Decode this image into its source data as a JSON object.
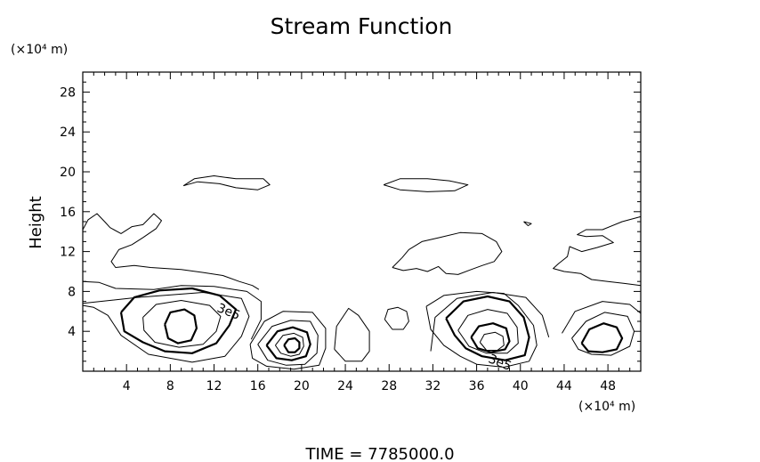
{
  "chart_data": {
    "type": "contour",
    "title": "Stream Function",
    "ylabel": "Height",
    "xlabel": "",
    "x_unit": "(×10⁴ m)",
    "y_unit": "(×10⁴ m)",
    "xlim": [
      0,
      51
    ],
    "ylim": [
      0,
      30
    ],
    "x_ticks": [
      4,
      8,
      12,
      16,
      20,
      24,
      28,
      32,
      36,
      40,
      44,
      48
    ],
    "y_ticks": [
      4,
      8,
      12,
      16,
      20,
      24,
      28
    ],
    "contour_labels": [
      {
        "text": "3e5",
        "x": 13.2,
        "y": 5.6
      },
      {
        "text": "3e5",
        "x": 38.0,
        "y": 0.5
      }
    ],
    "footer": "TIME  =  7785000.0",
    "contours": [
      {
        "bold": false,
        "points": [
          [
            0,
            6.8
          ],
          [
            5,
            7.4
          ],
          [
            11,
            7.9
          ],
          [
            14.5,
            7.3
          ],
          [
            15.2,
            5.5
          ],
          [
            14.5,
            3.5
          ],
          [
            13,
            1.5
          ],
          [
            10,
            0.9
          ],
          [
            6,
            1.7
          ],
          [
            3.5,
            3.6
          ],
          [
            2.3,
            5.6
          ],
          [
            1,
            6.4
          ],
          [
            0,
            6.6
          ]
        ]
      },
      {
        "bold": true,
        "points": [
          [
            3.5,
            5.9
          ],
          [
            4.7,
            7.4
          ],
          [
            7,
            8.1
          ],
          [
            10,
            8.3
          ],
          [
            12.5,
            7.6
          ],
          [
            14,
            6.2
          ],
          [
            13.4,
            4.6
          ],
          [
            12.2,
            2.8
          ],
          [
            10,
            1.8
          ],
          [
            7.5,
            2.0
          ],
          [
            5.5,
            2.9
          ],
          [
            3.8,
            4.0
          ],
          [
            3.5,
            5.9
          ]
        ]
      },
      {
        "bold": false,
        "points": [
          [
            5.5,
            5.4
          ],
          [
            6.7,
            6.7
          ],
          [
            9,
            7.1
          ],
          [
            11.6,
            6.6
          ],
          [
            12.6,
            5.5
          ],
          [
            12.2,
            4.0
          ],
          [
            11,
            2.7
          ],
          [
            8.8,
            2.4
          ],
          [
            6.6,
            2.9
          ],
          [
            5.6,
            4.1
          ],
          [
            5.5,
            5.4
          ]
        ]
      },
      {
        "bold": true,
        "points": [
          [
            7.5,
            4.7
          ],
          [
            8,
            5.9
          ],
          [
            9.3,
            6.2
          ],
          [
            10.2,
            5.6
          ],
          [
            10.4,
            4.3
          ],
          [
            9.9,
            3.1
          ],
          [
            8.7,
            2.8
          ],
          [
            7.8,
            3.3
          ],
          [
            7.5,
            4.7
          ]
        ]
      },
      {
        "bold": false,
        "points": [
          [
            0,
            9.0
          ],
          [
            1.5,
            8.9
          ],
          [
            3,
            8.3
          ],
          [
            6.5,
            8.2
          ],
          [
            9,
            8.6
          ],
          [
            12,
            8.5
          ],
          [
            15,
            8.0
          ],
          [
            16.3,
            7.0
          ],
          [
            16.3,
            5.2
          ],
          [
            15.4,
            3.2
          ]
        ]
      },
      {
        "bold": false,
        "points": [
          [
            15.3,
            2.7
          ],
          [
            16.6,
            5.0
          ],
          [
            18.3,
            6.0
          ],
          [
            21,
            5.9
          ],
          [
            22.2,
            4.3
          ],
          [
            22.2,
            2.3
          ],
          [
            21.6,
            0.6
          ],
          [
            19.3,
            0.2
          ],
          [
            16.8,
            0.5
          ],
          [
            15.5,
            1.3
          ],
          [
            15.3,
            2.7
          ]
        ]
      },
      {
        "bold": false,
        "points": [
          [
            16,
            2.7
          ],
          [
            17.3,
            4.5
          ],
          [
            19,
            5.1
          ],
          [
            20.8,
            5.0
          ],
          [
            21.5,
            3.6
          ],
          [
            21.4,
            1.8
          ],
          [
            20.3,
            0.7
          ],
          [
            18.6,
            0.6
          ],
          [
            16.9,
            1.1
          ],
          [
            16,
            2.7
          ]
        ]
      },
      {
        "bold": true,
        "points": [
          [
            16.8,
            2.6
          ],
          [
            17.8,
            4.0
          ],
          [
            19.2,
            4.4
          ],
          [
            20.5,
            3.9
          ],
          [
            20.8,
            2.7
          ],
          [
            20.4,
            1.5
          ],
          [
            19.1,
            1.1
          ],
          [
            17.7,
            1.3
          ],
          [
            16.8,
            2.6
          ]
        ]
      },
      {
        "bold": false,
        "points": [
          [
            17.6,
            2.6
          ],
          [
            18.3,
            3.6
          ],
          [
            19.3,
            3.8
          ],
          [
            20.1,
            3.4
          ],
          [
            20.2,
            2.5
          ],
          [
            19.8,
            1.7
          ],
          [
            19,
            1.5
          ],
          [
            18.1,
            1.8
          ],
          [
            17.6,
            2.6
          ]
        ]
      },
      {
        "bold": true,
        "points": [
          [
            18.4,
            2.6
          ],
          [
            18.8,
            3.2
          ],
          [
            19.4,
            3.3
          ],
          [
            19.8,
            2.9
          ],
          [
            19.8,
            2.3
          ],
          [
            19.4,
            1.9
          ],
          [
            18.8,
            1.9
          ],
          [
            18.4,
            2.6
          ]
        ]
      },
      {
        "bold": false,
        "points": [
          [
            23,
            2.2
          ],
          [
            23.2,
            4.5
          ],
          [
            24.3,
            6.3
          ],
          [
            25.2,
            5.6
          ],
          [
            26.2,
            4.0
          ],
          [
            26.2,
            2.0
          ],
          [
            25.5,
            1.0
          ],
          [
            24,
            1.0
          ],
          [
            23,
            2.2
          ]
        ]
      },
      {
        "bold": false,
        "points": [
          [
            27.6,
            5.2
          ],
          [
            27.9,
            6.2
          ],
          [
            28.8,
            6.4
          ],
          [
            29.6,
            6.0
          ],
          [
            29.8,
            5.0
          ],
          [
            29.3,
            4.2
          ],
          [
            28.3,
            4.2
          ],
          [
            27.6,
            5.2
          ]
        ]
      },
      {
        "bold": false,
        "points": [
          [
            31.4,
            6.5
          ],
          [
            33,
            7.6
          ],
          [
            36,
            8.0
          ],
          [
            38.5,
            7.8
          ],
          [
            39.8,
            6.6
          ],
          [
            41.2,
            4.6
          ],
          [
            41.5,
            2.6
          ],
          [
            40.8,
            1.0
          ],
          [
            38.5,
            0.4
          ],
          [
            36,
            0.7
          ],
          [
            34.5,
            1.5
          ],
          [
            33,
            2.6
          ],
          [
            31.8,
            4.2
          ],
          [
            31.4,
            6.5
          ]
        ]
      },
      {
        "bold": true,
        "points": [
          [
            33.2,
            5.3
          ],
          [
            34.8,
            7.0
          ],
          [
            37,
            7.5
          ],
          [
            39,
            7.0
          ],
          [
            40.3,
            5.4
          ],
          [
            40.8,
            3.4
          ],
          [
            40.4,
            1.6
          ],
          [
            38.6,
            1.1
          ],
          [
            36.5,
            1.5
          ],
          [
            35,
            2.3
          ],
          [
            34,
            3.6
          ],
          [
            33.2,
            5.3
          ]
        ]
      },
      {
        "bold": false,
        "points": [
          [
            34.3,
            4.1
          ],
          [
            35.2,
            5.6
          ],
          [
            37,
            6.2
          ],
          [
            38.8,
            5.8
          ],
          [
            39.7,
            4.4
          ],
          [
            39.8,
            2.8
          ],
          [
            38.8,
            1.8
          ],
          [
            36.9,
            1.8
          ],
          [
            35.3,
            2.5
          ],
          [
            34.3,
            4.1
          ]
        ]
      },
      {
        "bold": true,
        "points": [
          [
            35.5,
            3.4
          ],
          [
            36.2,
            4.5
          ],
          [
            37.5,
            4.8
          ],
          [
            38.7,
            4.3
          ],
          [
            39,
            3.0
          ],
          [
            38.6,
            2.2
          ],
          [
            37.3,
            1.9
          ],
          [
            36.1,
            2.3
          ],
          [
            35.5,
            3.4
          ]
        ]
      },
      {
        "bold": false,
        "points": [
          [
            36.3,
            2.9
          ],
          [
            36.7,
            3.7
          ],
          [
            37.7,
            3.9
          ],
          [
            38.4,
            3.5
          ],
          [
            38.5,
            2.6
          ],
          [
            37.9,
            2.1
          ],
          [
            36.9,
            2.1
          ],
          [
            36.3,
            2.9
          ]
        ]
      },
      {
        "bold": false,
        "points": [
          [
            31.8,
            2.0
          ],
          [
            32.2,
            5.4
          ],
          [
            34.2,
            7.3
          ],
          [
            37.5,
            7.9
          ],
          [
            40.5,
            7.4
          ],
          [
            42,
            5.6
          ],
          [
            42.6,
            3.4
          ]
        ]
      },
      {
        "bold": false,
        "points": [
          [
            43.8,
            3.8
          ],
          [
            45,
            6.0
          ],
          [
            47.5,
            7.0
          ],
          [
            50,
            6.7
          ],
          [
            51,
            5.8
          ]
        ]
      },
      {
        "bold": false,
        "points": [
          [
            44.7,
            3.3
          ],
          [
            46,
            5.0
          ],
          [
            47.7,
            5.9
          ],
          [
            49.8,
            5.5
          ],
          [
            50.4,
            4.0
          ],
          [
            50,
            2.5
          ],
          [
            48.3,
            1.6
          ],
          [
            46.5,
            1.7
          ],
          [
            45.3,
            2.2
          ],
          [
            44.7,
            3.3
          ]
        ]
      },
      {
        "bold": true,
        "points": [
          [
            45.6,
            2.8
          ],
          [
            46.3,
            4.2
          ],
          [
            47.6,
            4.8
          ],
          [
            48.8,
            4.4
          ],
          [
            49.3,
            3.3
          ],
          [
            48.8,
            2.2
          ],
          [
            47.5,
            1.9
          ],
          [
            46.2,
            2.0
          ],
          [
            45.6,
            2.8
          ]
        ]
      },
      {
        "bold": false,
        "points": [
          [
            0,
            14.2
          ],
          [
            0.5,
            15.2
          ],
          [
            1.3,
            15.8
          ],
          [
            2,
            15.0
          ],
          [
            2.5,
            14.4
          ],
          [
            3.5,
            13.8
          ],
          [
            4.5,
            14.5
          ],
          [
            5.5,
            14.7
          ],
          [
            6.5,
            15.8
          ],
          [
            7.2,
            15.1
          ],
          [
            6.7,
            14.3
          ],
          [
            5.5,
            13.4
          ],
          [
            4.5,
            12.7
          ],
          [
            3.3,
            12.2
          ],
          [
            2.6,
            11.0
          ],
          [
            3.0,
            10.4
          ],
          [
            4.7,
            10.6
          ],
          [
            6.2,
            10.4
          ],
          [
            9,
            10.2
          ],
          [
            11,
            9.9
          ],
          [
            12.8,
            9.6
          ],
          [
            14.3,
            9.0
          ],
          [
            15.5,
            8.6
          ],
          [
            16.1,
            8.2
          ]
        ]
      },
      {
        "bold": false,
        "points": [
          [
            9.2,
            18.6
          ],
          [
            10.5,
            19.0
          ],
          [
            12.5,
            18.8
          ],
          [
            14,
            18.4
          ],
          [
            16,
            18.2
          ],
          [
            17.1,
            18.7
          ],
          [
            16.5,
            19.3
          ],
          [
            14,
            19.3
          ],
          [
            12,
            19.6
          ],
          [
            10.2,
            19.3
          ],
          [
            9.2,
            18.6
          ]
        ]
      },
      {
        "bold": false,
        "points": [
          [
            27.5,
            18.7
          ],
          [
            29,
            19.3
          ],
          [
            31.5,
            19.3
          ],
          [
            33.5,
            19.1
          ],
          [
            35.2,
            18.7
          ],
          [
            34,
            18.1
          ],
          [
            31.5,
            18.0
          ],
          [
            29,
            18.2
          ],
          [
            27.5,
            18.7
          ]
        ]
      },
      {
        "bold": false,
        "points": [
          [
            28.3,
            10.4
          ],
          [
            29.2,
            11.4
          ],
          [
            29.8,
            12.2
          ],
          [
            31,
            13.0
          ],
          [
            32.6,
            13.4
          ],
          [
            34.5,
            13.9
          ],
          [
            36.5,
            13.8
          ],
          [
            37.8,
            13.0
          ],
          [
            38.3,
            12.0
          ],
          [
            37.6,
            11.0
          ],
          [
            36.5,
            10.6
          ],
          [
            35.5,
            10.2
          ],
          [
            34.3,
            9.7
          ],
          [
            33.2,
            9.8
          ],
          [
            32.5,
            10.5
          ],
          [
            31.5,
            10.0
          ],
          [
            30.5,
            10.3
          ],
          [
            29.3,
            10.1
          ],
          [
            28.3,
            10.4
          ]
        ]
      },
      {
        "bold": false,
        "points": [
          [
            40.3,
            15.0
          ],
          [
            41,
            14.8
          ],
          [
            40.7,
            14.6
          ],
          [
            40.3,
            15.0
          ]
        ]
      },
      {
        "bold": false,
        "points": [
          [
            51,
            15.5
          ],
          [
            49.3,
            15.0
          ],
          [
            47.5,
            14.2
          ],
          [
            46,
            14.2
          ],
          [
            45.2,
            13.7
          ],
          [
            46,
            13.5
          ],
          [
            47.5,
            13.6
          ],
          [
            48.5,
            12.9
          ],
          [
            47,
            12.4
          ],
          [
            45.6,
            12.0
          ],
          [
            44.5,
            12.5
          ],
          [
            44.3,
            11.5
          ],
          [
            43.5,
            10.8
          ],
          [
            43,
            10.3
          ],
          [
            44,
            10.0
          ],
          [
            45.5,
            9.8
          ],
          [
            46.5,
            9.2
          ],
          [
            48,
            9.0
          ],
          [
            49.5,
            8.8
          ],
          [
            51,
            8.6
          ]
        ]
      }
    ]
  }
}
